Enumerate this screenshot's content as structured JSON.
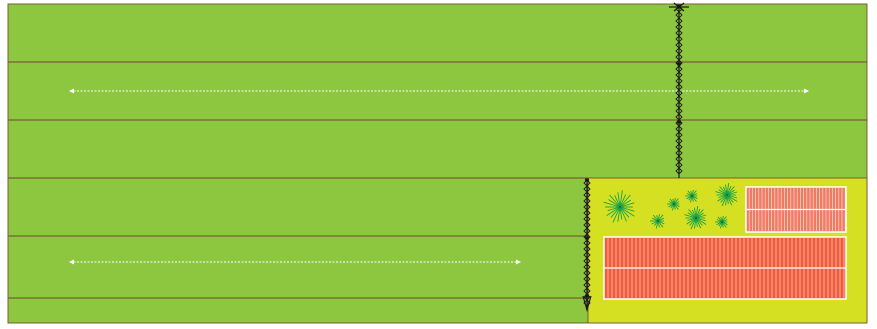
{
  "colors": {
    "field_green": "#8dc63f",
    "strip_line": "#7a5f35",
    "plot_yellow": "#d4e021",
    "bed_red_light": "#f07a62",
    "bed_red": "#f15a3a",
    "tree_green": "#17a14a",
    "fence_black": "#1a1a1a",
    "arrow_white": "#ffffff"
  },
  "icons": {
    "tree": "tree-icon",
    "fence": "fence-icon",
    "arrow": "double-arrow-icon",
    "bed": "planting-bed-icon"
  }
}
